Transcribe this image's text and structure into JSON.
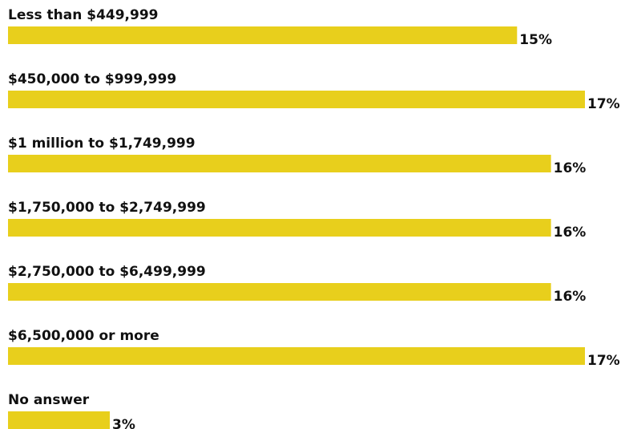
{
  "chart_data": {
    "type": "bar",
    "categories": [
      "Less than $449,999",
      "$450,000 to $999,999",
      "$1 million to $1,749,999",
      "$1,750,000 to $2,749,999",
      "$2,750,000 to $6,499,999",
      "$6,500,000 or more",
      "No answer"
    ],
    "values": [
      15,
      17,
      16,
      16,
      16,
      17,
      3
    ],
    "value_labels": [
      "15%",
      "17%",
      "16%",
      "16%",
      "16%",
      "17%",
      "3%"
    ],
    "color": "#e8cf1c"
  }
}
